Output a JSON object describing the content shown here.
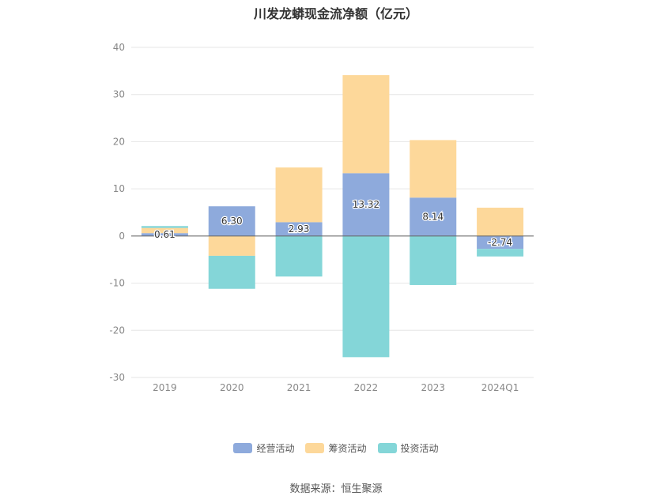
{
  "chart_data": {
    "type": "bar",
    "stacked": true,
    "title": "川发龙蟒现金流净额（亿元）",
    "categories": [
      "2019",
      "2020",
      "2021",
      "2022",
      "2023",
      "2024Q1"
    ],
    "series": [
      {
        "name": "经营活动",
        "color": "#8eaadc",
        "values": [
          0.61,
          6.3,
          2.93,
          13.32,
          8.14,
          -2.74
        ]
      },
      {
        "name": "筹资活动",
        "color": "#fdd89a",
        "values": [
          1.1,
          -4.2,
          11.6,
          20.8,
          12.2,
          6.0
        ]
      },
      {
        "name": "投资活动",
        "color": "#84d6d8",
        "values": [
          0.4,
          -7.0,
          -8.6,
          -25.7,
          -10.4,
          -1.6
        ]
      }
    ],
    "data_labels": [
      "0.61",
      "6.30",
      "2.93",
      "13.32",
      "8.14",
      "-2.74"
    ],
    "ylim": [
      -30,
      40
    ],
    "yticks": [
      40,
      30,
      20,
      10,
      0,
      -10,
      -20,
      -30
    ],
    "grid": true,
    "legend_position": "bottom"
  },
  "source_text": "数据来源：恒生聚源"
}
